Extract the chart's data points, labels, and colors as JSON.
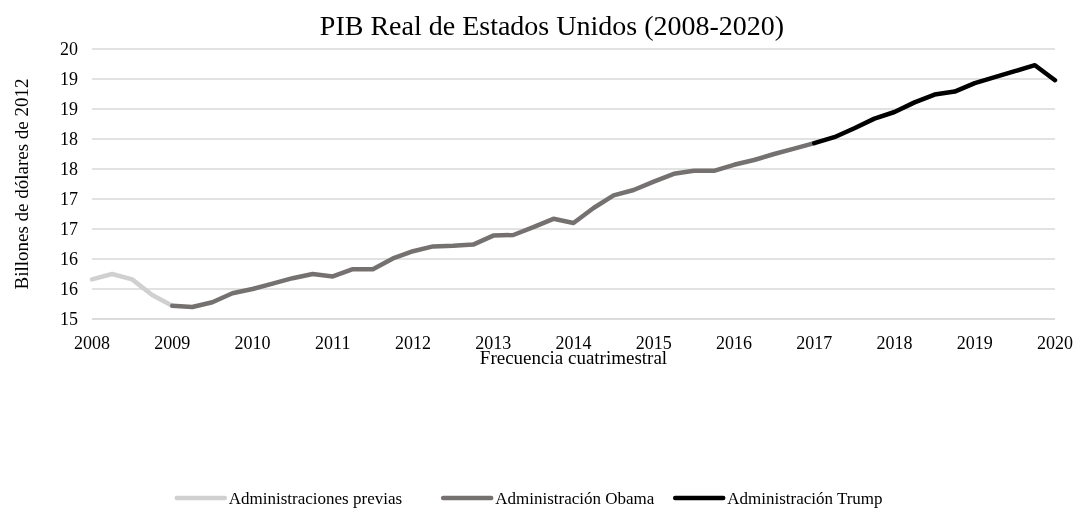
{
  "chart_data": {
    "type": "line",
    "title": "PIB Real de Estados Unidos (2008-2020)",
    "xlabel": "Frecuencia cuatrimestral",
    "ylabel": "Billones de dólares de 2012",
    "xlim": [
      2008,
      2020
    ],
    "xticks": [
      2008,
      2009,
      2010,
      2011,
      2012,
      2013,
      2014,
      2015,
      2016,
      2017,
      2018,
      2019,
      2020
    ],
    "ylim": [
      15,
      19.5
    ],
    "yticks": [
      15,
      {
        "value": 15.5,
        "label": "16"
      },
      16,
      {
        "value": 16.5,
        "label": "17"
      },
      17,
      {
        "value": 17.5,
        "label": "18"
      },
      18,
      {
        "value": 18.5,
        "label": "19"
      },
      19,
      {
        "value": 19.5,
        "label": "20"
      }
    ],
    "grid": "y",
    "legend": "bottom",
    "marker": "none",
    "line_style": "solid",
    "series": [
      {
        "name": "Administraciones previas",
        "color": "#d0d0d0",
        "x": [
          2008,
          2008.25,
          2008.5,
          2008.75,
          2009
        ],
        "values": [
          15.66,
          15.75,
          15.66,
          15.4,
          15.22
        ]
      },
      {
        "name": "Administración Obama",
        "color": "#767171",
        "x": [
          2009,
          2009.25,
          2009.5,
          2009.75,
          2010,
          2010.25,
          2010.5,
          2010.75,
          2011,
          2011.25,
          2011.5,
          2011.75,
          2012,
          2012.25,
          2012.5,
          2012.75,
          2013,
          2013.25,
          2013.5,
          2013.75,
          2014,
          2014.25,
          2014.5,
          2014.75,
          2015,
          2015.25,
          2015.5,
          2015.75,
          2016,
          2016.25,
          2016.5,
          2016.75,
          2017
        ],
        "values": [
          15.22,
          15.2,
          15.28,
          15.43,
          15.5,
          15.59,
          15.68,
          15.75,
          15.71,
          15.83,
          15.83,
          16.01,
          16.13,
          16.21,
          16.22,
          16.24,
          16.39,
          16.4,
          16.53,
          16.67,
          16.6,
          16.85,
          17.06,
          17.15,
          17.29,
          17.42,
          17.47,
          17.47,
          17.57,
          17.65,
          17.75,
          17.84,
          17.93
        ]
      },
      {
        "name": "Administración Trump",
        "color": "#000000",
        "x": [
          2017,
          2017.25,
          2017.5,
          2017.75,
          2018,
          2018.25,
          2018.5,
          2018.75,
          2019,
          2019.25,
          2019.5,
          2019.75,
          2020
        ],
        "values": [
          17.93,
          18.03,
          18.18,
          18.34,
          18.45,
          18.61,
          18.74,
          18.79,
          18.93,
          19.03,
          19.13,
          19.23,
          18.98
        ]
      }
    ]
  }
}
